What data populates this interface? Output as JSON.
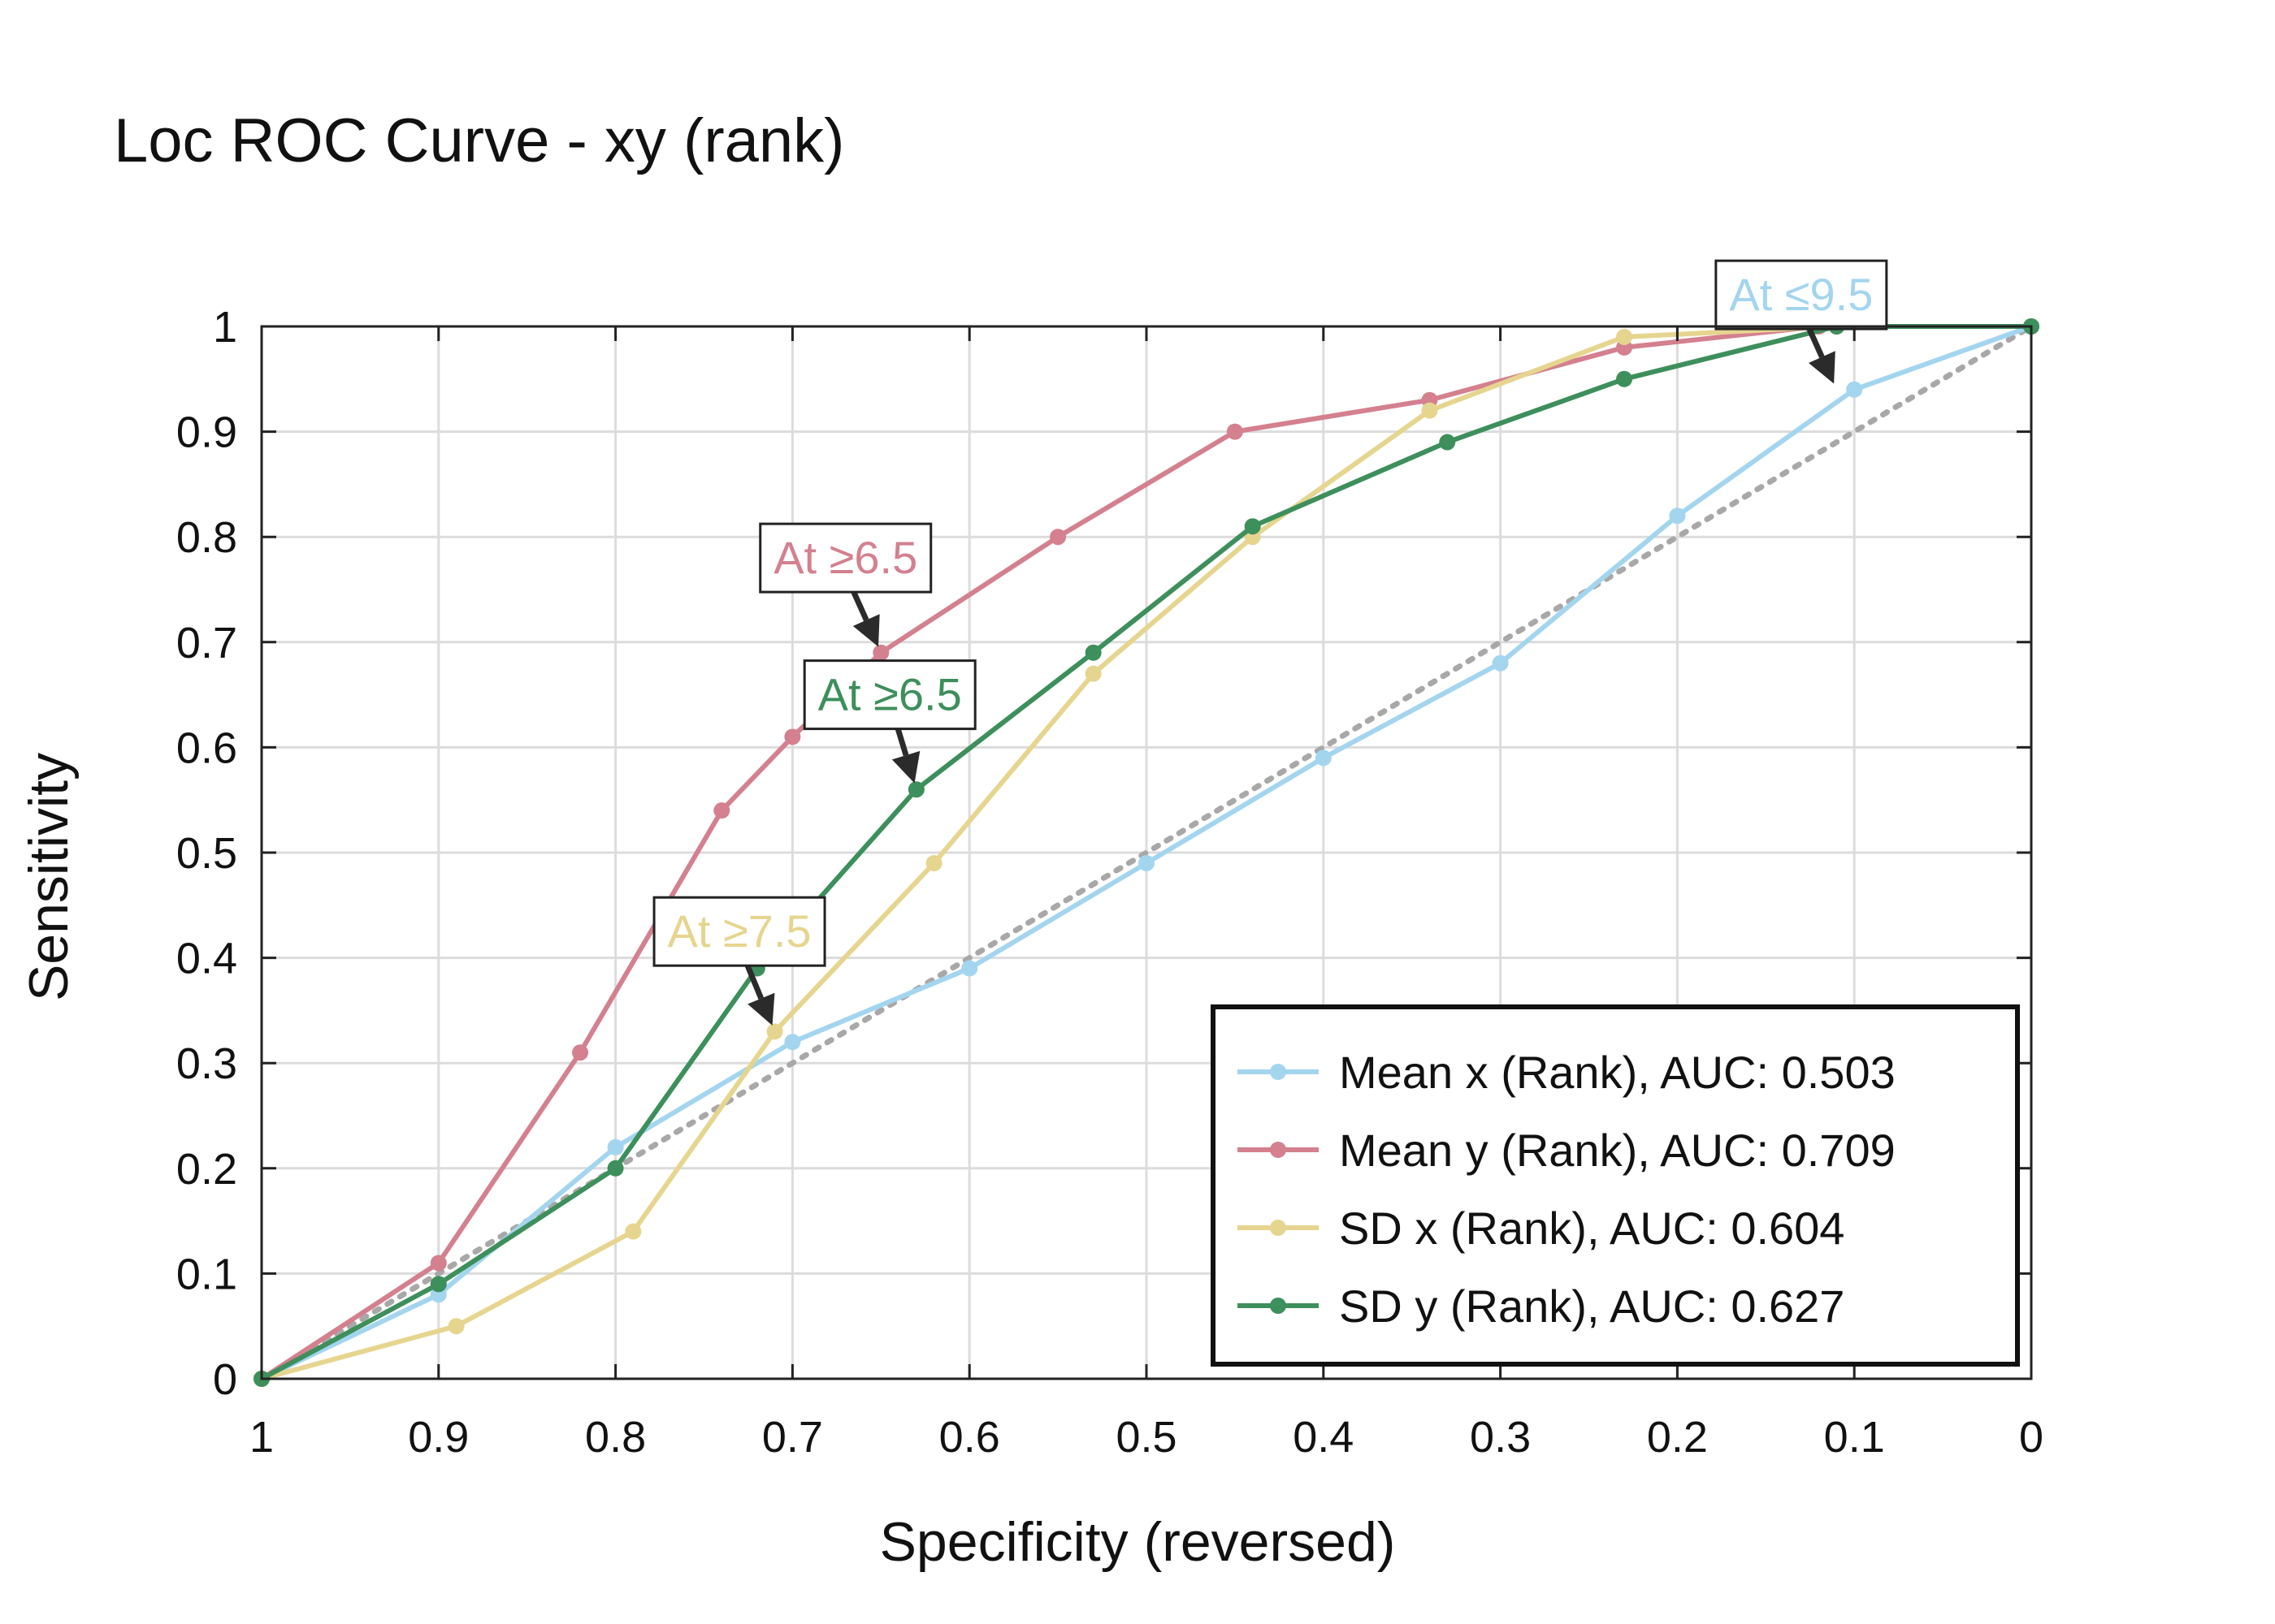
{
  "chart_data": {
    "type": "line",
    "title": "Loc ROC Curve - xy (rank)",
    "xlabel": "Specificity (reversed)",
    "ylabel": "Sensitivity",
    "x_reversed": true,
    "xlim": [
      1,
      0
    ],
    "ylim": [
      0,
      1
    ],
    "xticks": [
      "1",
      "0.9",
      "0.8",
      "0.7",
      "0.6",
      "0.5",
      "0.4",
      "0.3",
      "0.2",
      "0.1",
      "0"
    ],
    "yticks": [
      "0",
      "0.1",
      "0.2",
      "0.3",
      "0.4",
      "0.5",
      "0.6",
      "0.7",
      "0.8",
      "0.9",
      "1"
    ],
    "grid": true,
    "diagonal_reference": true,
    "legend_position": "bottom-right",
    "series": [
      {
        "name": "Mean x (Rank), AUC: 0.503",
        "color": "#a3d5ef",
        "specificity": [
          1,
          0.9,
          0.8,
          0.7,
          0.6,
          0.5,
          0.4,
          0.3,
          0.2,
          0.1,
          0
        ],
        "sensitivity": [
          0,
          0.08,
          0.22,
          0.32,
          0.39,
          0.49,
          0.59,
          0.68,
          0.82,
          0.94,
          1
        ]
      },
      {
        "name": "Mean y (Rank), AUC: 0.709",
        "color": "#d4808f",
        "specificity": [
          1,
          0.9,
          0.82,
          0.74,
          0.7,
          0.65,
          0.55,
          0.45,
          0.34,
          0.23,
          0.12,
          0
        ],
        "sensitivity": [
          0,
          0.11,
          0.31,
          0.54,
          0.61,
          0.69,
          0.8,
          0.9,
          0.93,
          0.98,
          1,
          1
        ]
      },
      {
        "name": "SD x (Rank), AUC: 0.604",
        "color": "#e6d58f",
        "specificity": [
          1,
          0.89,
          0.79,
          0.71,
          0.62,
          0.53,
          0.44,
          0.34,
          0.23,
          0.11,
          0
        ],
        "sensitivity": [
          0,
          0.05,
          0.14,
          0.33,
          0.49,
          0.67,
          0.8,
          0.92,
          0.99,
          1,
          1
        ]
      },
      {
        "name": "SD y (Rank), AUC: 0.627",
        "color": "#3d8f5b",
        "specificity": [
          1,
          0.9,
          0.8,
          0.72,
          0.63,
          0.53,
          0.44,
          0.33,
          0.23,
          0.11,
          0
        ],
        "sensitivity": [
          0,
          0.09,
          0.2,
          0.39,
          0.56,
          0.69,
          0.81,
          0.89,
          0.95,
          1,
          1
        ]
      }
    ],
    "annotations": [
      {
        "text": "At ≥6.5",
        "series": 1,
        "point_x": 0.65,
        "point_y": 0.69,
        "box_x": 0.67,
        "box_y": 0.78,
        "color": "#d4808f"
      },
      {
        "text": "At ≥6.5",
        "series": 3,
        "point_x": 0.63,
        "point_y": 0.56,
        "box_x": 0.645,
        "box_y": 0.65,
        "color": "#3d8f5b"
      },
      {
        "text": "At ≥7.5",
        "series": 2,
        "point_x": 0.71,
        "point_y": 0.33,
        "box_x": 0.73,
        "box_y": 0.425,
        "color": "#e6d58f"
      },
      {
        "text": "At ≤9.5",
        "series": 0,
        "point_x": 0.11,
        "point_y": 0.94,
        "box_x": 0.13,
        "box_y": 1.03,
        "color": "#a3d5ef"
      }
    ]
  }
}
